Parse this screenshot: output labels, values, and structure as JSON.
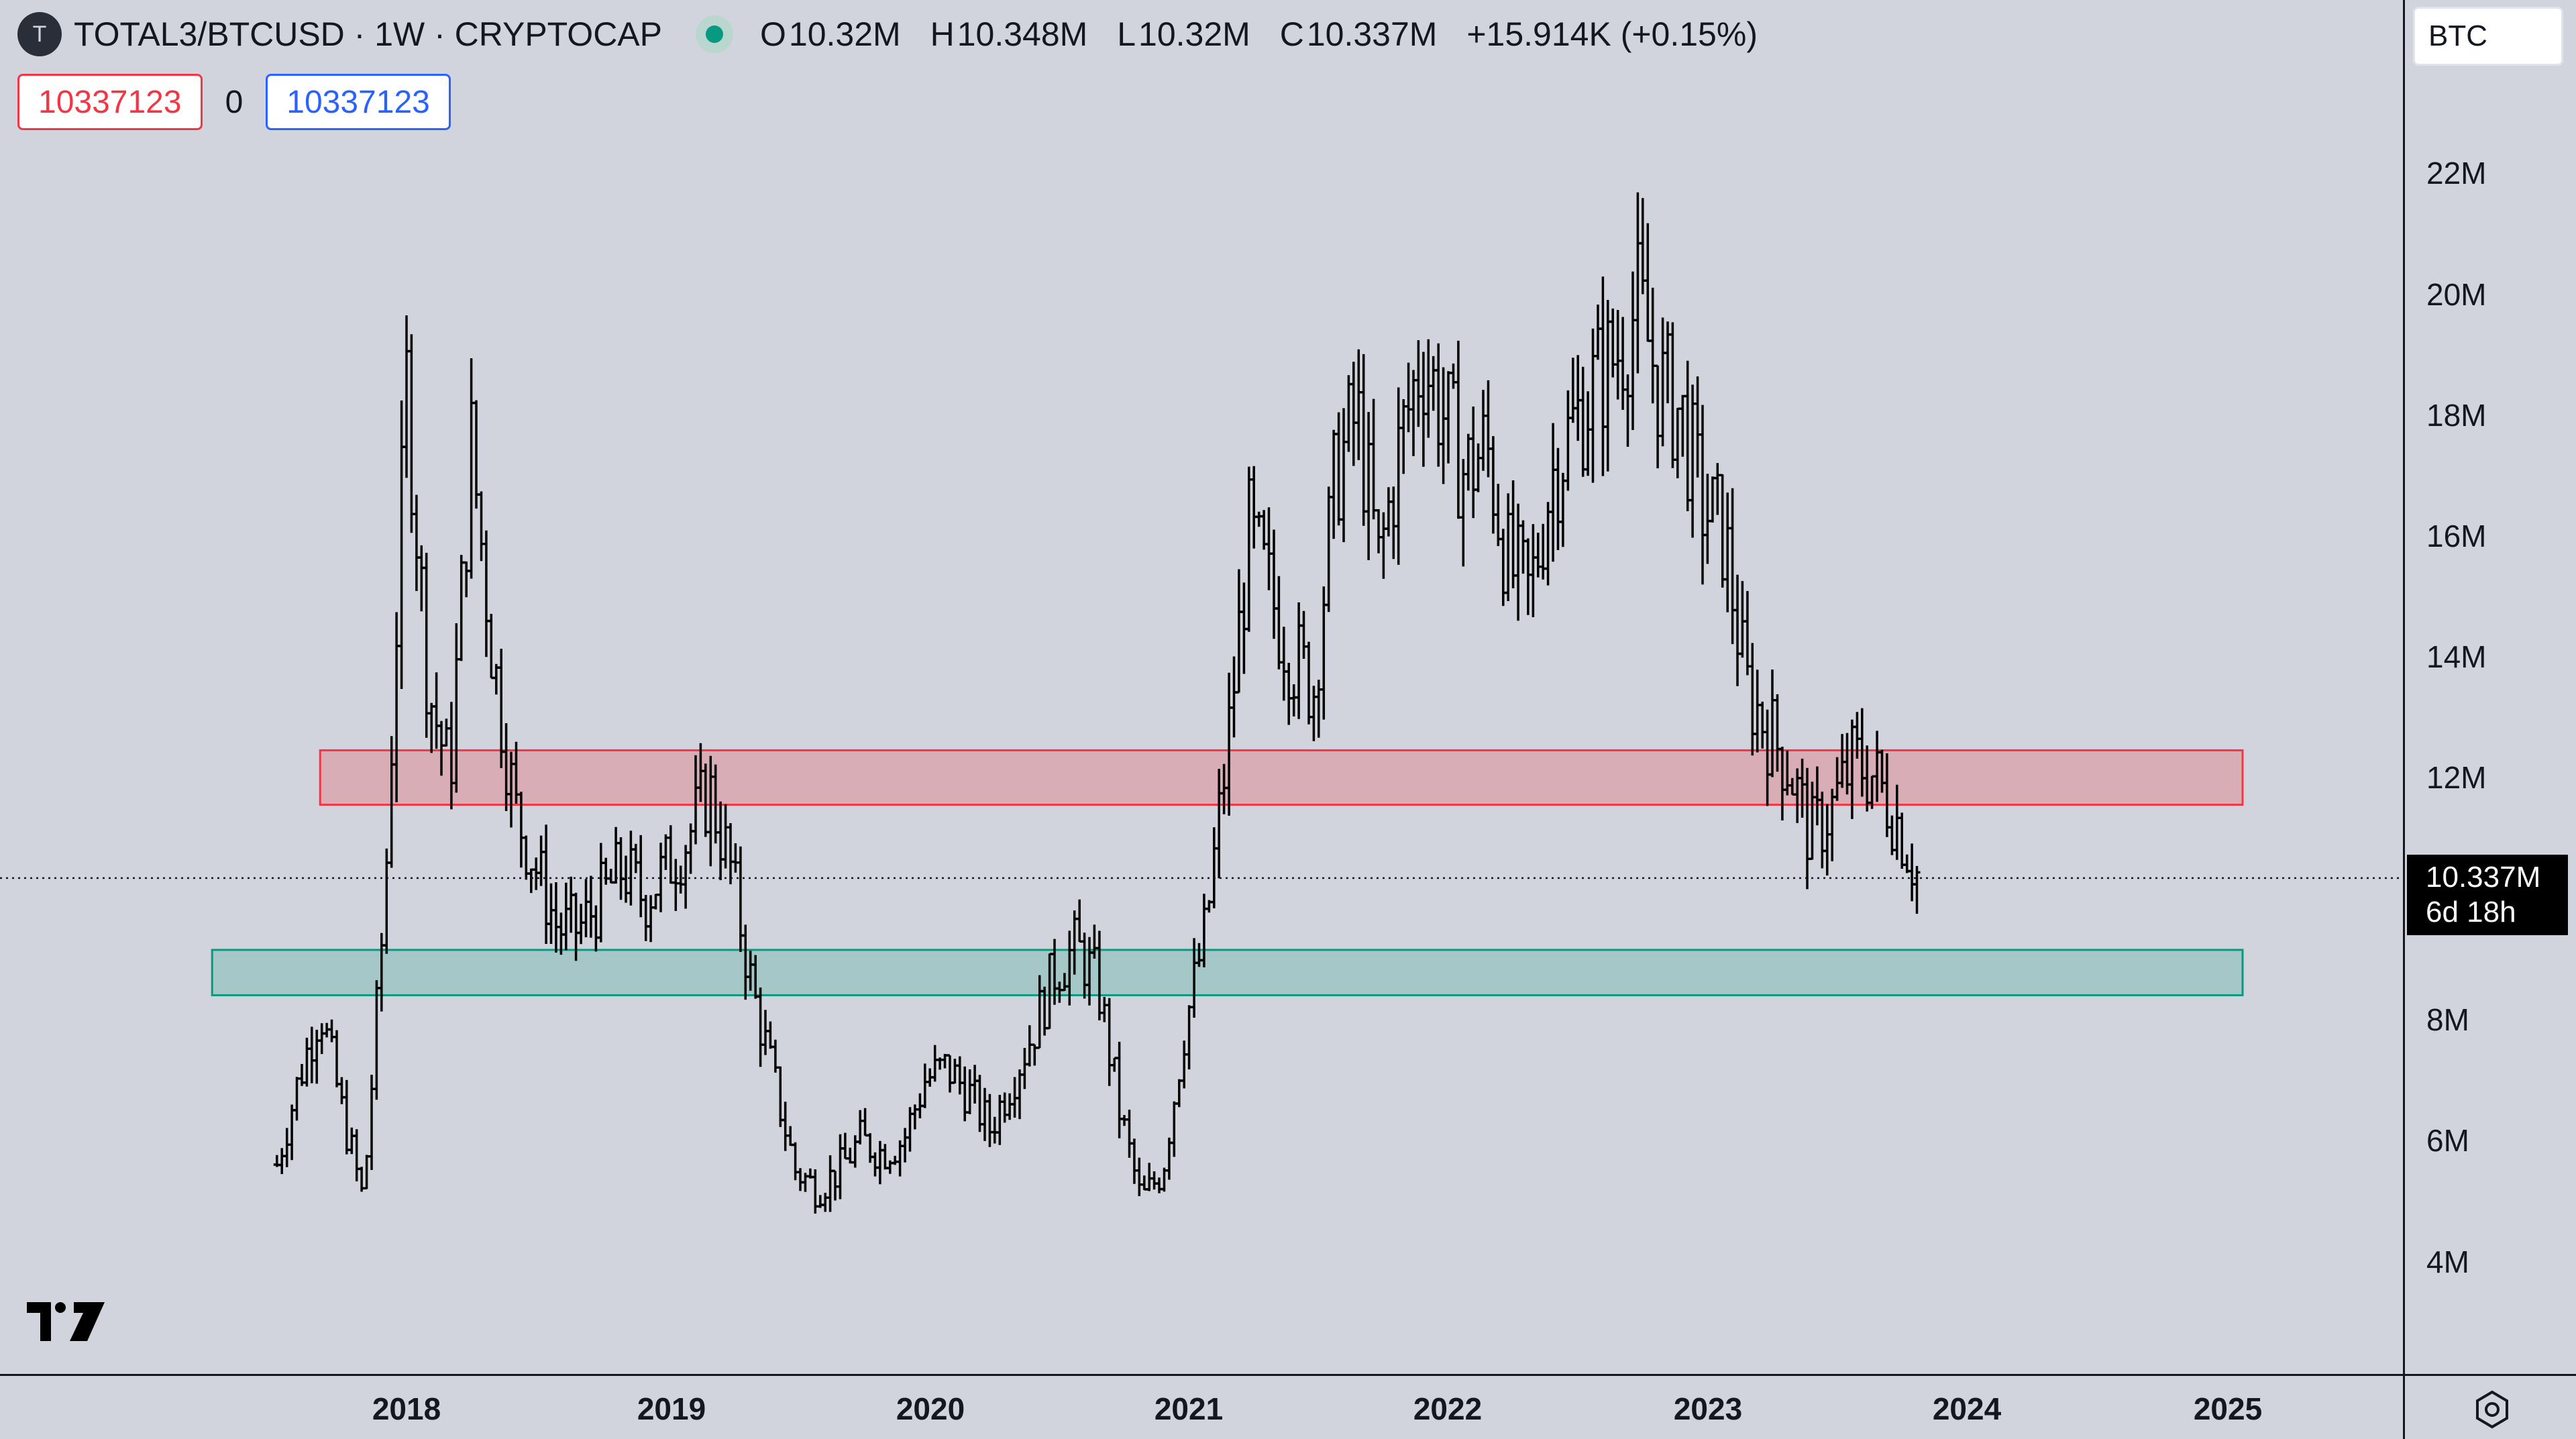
{
  "legend": {
    "logo_letter": "T",
    "title": "TOTAL3/BTCUSD · 1W · CRYPTOCAP",
    "ohlc": [
      {
        "key": "O",
        "value": "10.32M"
      },
      {
        "key": "H",
        "value": "10.348M"
      },
      {
        "key": "L",
        "value": "10.32M"
      },
      {
        "key": "C",
        "value": "10.337M"
      }
    ],
    "change": "+15.914K (+0.15%)",
    "input_left": "10337123",
    "input_mid": "0",
    "input_right": "10337123"
  },
  "price_axis": {
    "currency_button": "BTC",
    "labels": [
      "22M",
      "20M",
      "18M",
      "16M",
      "14M",
      "12M",
      "8M",
      "6M",
      "4M"
    ],
    "last_price": "10.337M",
    "countdown": "6d 18h"
  },
  "time_axis": {
    "labels": [
      "2018",
      "2019",
      "2020",
      "2021",
      "2022",
      "2023",
      "2024",
      "2025"
    ]
  },
  "chart_data": {
    "type": "bar",
    "style": "ohlc-weekly",
    "x_start": "2017-07",
    "x_end": "2023-11",
    "ylim": [
      2500000,
      25500000
    ],
    "last_value": 10337000,
    "zones": [
      {
        "name": "resistance",
        "color": "#f23645",
        "y_low": 11550000,
        "y_high": 12450000,
        "x_start": "2017-09",
        "x_end": "2025-02"
      },
      {
        "name": "support",
        "color": "#089981",
        "y_low": 8400000,
        "y_high": 9150000,
        "x_start": "2017-04",
        "x_end": "2025-02"
      }
    ],
    "anchors": [
      [
        "2017-07",
        5.6
      ],
      [
        "2017-08",
        7.0
      ],
      [
        "2017-09",
        8.2
      ],
      [
        "2017-10",
        6.5
      ],
      [
        "2017-11",
        5.0
      ],
      [
        "2017-12",
        10.0
      ],
      [
        "2018-01",
        18.5
      ],
      [
        "2018-02",
        13.5
      ],
      [
        "2018-03",
        12.0
      ],
      [
        "2018-04",
        17.5
      ],
      [
        "2018-05",
        14.0
      ],
      [
        "2018-06",
        11.5
      ],
      [
        "2018-07",
        10.5
      ],
      [
        "2018-08",
        9.5
      ],
      [
        "2018-09",
        9.5
      ],
      [
        "2018-10",
        10.0
      ],
      [
        "2018-11",
        10.5
      ],
      [
        "2018-12",
        10.0
      ],
      [
        "2019-01",
        10.5
      ],
      [
        "2019-02",
        11.0
      ],
      [
        "2019-03",
        11.8
      ],
      [
        "2019-04",
        10.5
      ],
      [
        "2019-05",
        8.5
      ],
      [
        "2019-06",
        7.0
      ],
      [
        "2019-07",
        5.5
      ],
      [
        "2019-08",
        5.2
      ],
      [
        "2019-09",
        5.5
      ],
      [
        "2019-10",
        6.0
      ],
      [
        "2019-11",
        5.8
      ],
      [
        "2019-12",
        6.0
      ],
      [
        "2020-01",
        7.0
      ],
      [
        "2020-02",
        7.2
      ],
      [
        "2020-03",
        6.8
      ],
      [
        "2020-04",
        6.2
      ],
      [
        "2020-05",
        7.0
      ],
      [
        "2020-06",
        7.8
      ],
      [
        "2020-07",
        8.8
      ],
      [
        "2020-08",
        9.2
      ],
      [
        "2020-09",
        8.6
      ],
      [
        "2020-10",
        6.5
      ],
      [
        "2020-11",
        5.0
      ],
      [
        "2020-12",
        5.5
      ],
      [
        "2021-01",
        7.8
      ],
      [
        "2021-02",
        9.5
      ],
      [
        "2021-03",
        12.5
      ],
      [
        "2021-04",
        16.0
      ],
      [
        "2021-05",
        15.0
      ],
      [
        "2021-06",
        14.0
      ],
      [
        "2021-07",
        13.5
      ],
      [
        "2021-08",
        17.0
      ],
      [
        "2021-09",
        18.0
      ],
      [
        "2021-10",
        15.5
      ],
      [
        "2021-11",
        17.5
      ],
      [
        "2021-12",
        19.0
      ],
      [
        "2022-01",
        18.0
      ],
      [
        "2022-02",
        17.0
      ],
      [
        "2022-03",
        17.5
      ],
      [
        "2022-04",
        15.5
      ],
      [
        "2022-05",
        15.0
      ],
      [
        "2022-06",
        17.0
      ],
      [
        "2022-07",
        17.8
      ],
      [
        "2022-08",
        18.5
      ],
      [
        "2022-09",
        19.0
      ],
      [
        "2022-10",
        19.8
      ],
      [
        "2022-11",
        18.5
      ],
      [
        "2022-12",
        18.0
      ],
      [
        "2023-01",
        16.5
      ],
      [
        "2023-02",
        16.0
      ],
      [
        "2023-03",
        13.5
      ],
      [
        "2023-04",
        12.8
      ],
      [
        "2023-05",
        12.2
      ],
      [
        "2023-06",
        11.0
      ],
      [
        "2023-07",
        11.5
      ],
      [
        "2023-08",
        12.3
      ],
      [
        "2023-09",
        12.0
      ],
      [
        "2023-10",
        11.3
      ],
      [
        "2023-11",
        10.34
      ]
    ],
    "anchors_unit": "millions BTC"
  }
}
